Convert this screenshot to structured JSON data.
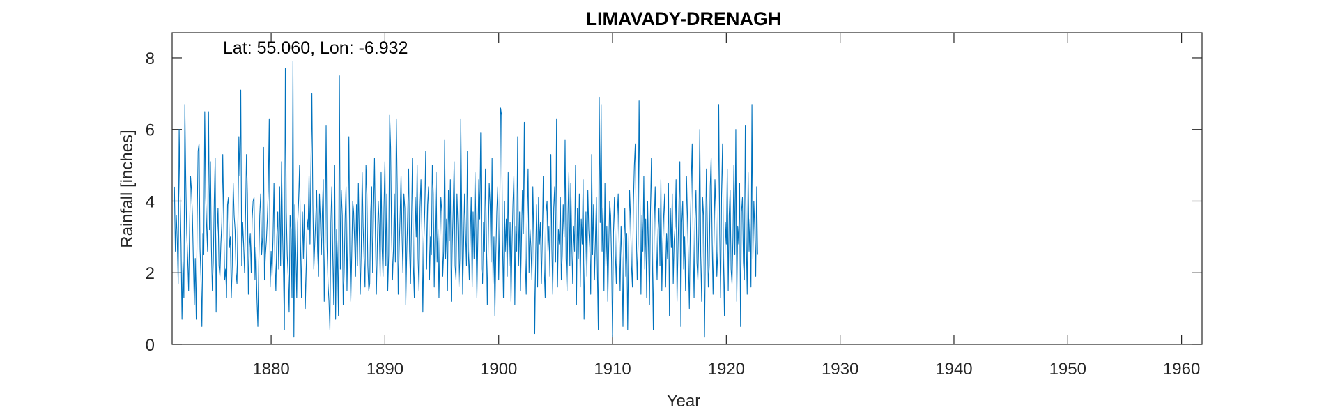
{
  "chart_data": {
    "type": "line",
    "title": "LIMAVADY-DRENAGH",
    "xlabel": "Year",
    "ylabel": "Rainfall [inches]",
    "annotation": "Lat: 55.060, Lon: -6.932",
    "xlim": [
      1871.3,
      1961.8
    ],
    "ylim": [
      0,
      8.7
    ],
    "x_ticks": [
      1880,
      1890,
      1900,
      1910,
      1920,
      1930,
      1940,
      1950,
      1960
    ],
    "y_ticks": [
      0,
      2,
      4,
      6,
      8
    ],
    "grid": false,
    "series": [
      {
        "color": "#0072BD",
        "x_start": 1871.5,
        "x_step": 0.0833333,
        "values": [
          4.4,
          2.6,
          3.6,
          2.9,
          1.7,
          6.0,
          4.2,
          2.8,
          0.7,
          2.3,
          1.3,
          6.7,
          4.6,
          3.1,
          2.4,
          1.5,
          3.2,
          4.7,
          4.3,
          3.6,
          2.3,
          1.1,
          2.4,
          0.7,
          3.5,
          5.4,
          5.6,
          2.7,
          1.9,
          0.5,
          3.1,
          2.5,
          6.5,
          4.1,
          3.3,
          2.6,
          6.5,
          3.2,
          5.1,
          2.7,
          1.5,
          2.3,
          4.0,
          5.2,
          0.9,
          3.1,
          3.8,
          2.2,
          1.9,
          2.8,
          3.4,
          5.3,
          3.5,
          1.8,
          2.1,
          1.3,
          3.9,
          4.1,
          2.7,
          3.0,
          1.3,
          2.2,
          4.5,
          3.6,
          3.2,
          2.0,
          1.7,
          3.4,
          5.8,
          4.7,
          7.1,
          2.2,
          3.4,
          2.8,
          2.0,
          3.6,
          5.3,
          4.2,
          1.4,
          2.7,
          3.1,
          2.0,
          3.5,
          4.0,
          4.1,
          1.8,
          2.7,
          1.3,
          0.5,
          2.3,
          3.6,
          4.2,
          2.5,
          3.0,
          5.5,
          1.8,
          2.5,
          2.9,
          3.5,
          4.3,
          6.3,
          1.6,
          2.6,
          1.9,
          3.0,
          4.5,
          2.3,
          1.5,
          3.0,
          3.7,
          2.1,
          4.4,
          2.2,
          5.1,
          3.2,
          2.0,
          0.4,
          7.7,
          3.7,
          2.5,
          1.9,
          0.9,
          3.6,
          3.2,
          1.3,
          7.9,
          0.2,
          3.9,
          2.6,
          1.3,
          3.4,
          4.0,
          5.0,
          2.8,
          1.3,
          3.7,
          2.4,
          3.9,
          1.0,
          2.1,
          3.5,
          3.2,
          4.7,
          2.8,
          5.0,
          7.0,
          3.9,
          2.1,
          2.8,
          3.5,
          4.3,
          2.6,
          1.9,
          4.2,
          3.4,
          2.5,
          3.7,
          4.6,
          1.2,
          2.9,
          6.1,
          2.7,
          1.7,
          1.2,
          0.4,
          3.4,
          4.4,
          2.5,
          1.1,
          5.0,
          0.7,
          3.2,
          2.4,
          0.8,
          7.5,
          2.1,
          4.3,
          3.6,
          1.1,
          2.0,
          3.5,
          4.4,
          1.5,
          3.2,
          5.8,
          2.6,
          1.2,
          2.5,
          4.0,
          3.7,
          2.9,
          1.9,
          3.9,
          2.2,
          4.5,
          3.0,
          1.4,
          2.6,
          4.8,
          3.3,
          2.4,
          1.6,
          5.0,
          4.2,
          2.2,
          1.5,
          1.7,
          3.7,
          4.4,
          2.0,
          3.7,
          5.2,
          3.0,
          1.4,
          2.8,
          4.0,
          3.3,
          1.9,
          4.8,
          2.7,
          1.9,
          3.8,
          5.1,
          2.2,
          4.2,
          1.5,
          2.5,
          6.4,
          5.5,
          3.1,
          1.8,
          2.7,
          4.2,
          2.3,
          6.3,
          4.4,
          1.4,
          2.6,
          3.6,
          4.7,
          3.1,
          2.0,
          4.2,
          3.8,
          1.1,
          2.5,
          3.6,
          4.9,
          2.6,
          1.7,
          3.3,
          5.2,
          2.2,
          1.3,
          4.1,
          3.0,
          5.0,
          2.4,
          1.5,
          3.8,
          4.6,
          3.2,
          0.9,
          2.8,
          3.7,
          5.4,
          2.1,
          3.9,
          4.4,
          1.8,
          3.0,
          2.5,
          5.0,
          4.2,
          1.6,
          3.4,
          4.8,
          2.3,
          3.2,
          1.3,
          2.9,
          4.1,
          3.7,
          1.9,
          2.6,
          5.7,
          2.4,
          3.5,
          1.5,
          4.3,
          2.9,
          4.6,
          1.2,
          2.7,
          3.8,
          5.1,
          2.2,
          1.8,
          4.2,
          3.3,
          1.6,
          2.4,
          6.3,
          3.6,
          1.4,
          2.8,
          4.2,
          3.1,
          2.2,
          5.4,
          2.6,
          1.8,
          3.0,
          4.1,
          1.6,
          3.7,
          2.4,
          4.8,
          3.2,
          1.3,
          2.9,
          4.6,
          3.5,
          5.9,
          2.1,
          1.7,
          3.4,
          2.6,
          4.9,
          3.1,
          1.1,
          2.8,
          4.5,
          3.9,
          2.3,
          5.2,
          1.7,
          3.0,
          0.8,
          2.5,
          3.7,
          4.4,
          1.8,
          3.3,
          6.6,
          6.4,
          2.9,
          1.3,
          4.0,
          2.6,
          3.5,
          1.9,
          4.8,
          2.2,
          3.4,
          1.2,
          2.7,
          3.9,
          4.7,
          1.1,
          3.3,
          2.6,
          5.8,
          2.2,
          3.7,
          1.5,
          2.9,
          4.3,
          3.1,
          6.2,
          2.4,
          1.4,
          3.5,
          4.9,
          2.0,
          3.2,
          2.7,
          1.8,
          4.4,
          3.0,
          0.3,
          2.5,
          3.9,
          1.6,
          4.1,
          2.8,
          3.4,
          1.7,
          2.9,
          4.7,
          2.1,
          1.3,
          3.7,
          4.0,
          2.6,
          3.3,
          1.9,
          5.3,
          2.7,
          1.4,
          3.8,
          4.4,
          2.3,
          6.3,
          1.6,
          3.2,
          2.8,
          4.1,
          1.8,
          2.5,
          3.9,
          3.0,
          5.7,
          2.4,
          1.5,
          3.6,
          4.8,
          2.2,
          4.5,
          2.9,
          1.7,
          3.3,
          2.6,
          5.0,
          1.1,
          3.8,
          2.4,
          4.2,
          1.6,
          3.5,
          2.8,
          4.6,
          0.7,
          2.3,
          3.7,
          1.9,
          4.3,
          3.2,
          2.7,
          1.4,
          5.3,
          2.5,
          3.9,
          1.8,
          3.0,
          4.1,
          2.1,
          0.4,
          6.9,
          3.4,
          6.7,
          2.6,
          3.8,
          1.5,
          4.5,
          2.2,
          3.3,
          1.2,
          2.7,
          4.0,
          3.6,
          2.3,
          0.2,
          3.1,
          4.1,
          2.5,
          1.7,
          3.6,
          4.2,
          2.8,
          1.5,
          3.3,
          2.4,
          0.5,
          2.9,
          3.8,
          1.9,
          3.1,
          0.4,
          2.7,
          4.3,
          3.5,
          2.2,
          1.6,
          3.9,
          5.0,
          5.6,
          3.2,
          1.8,
          2.8,
          6.8,
          4.0,
          1.4,
          3.6,
          2.6,
          4.7,
          2.1,
          3.5,
          1.3,
          4.0,
          2.6,
          1.1,
          3.7,
          5.2,
          2.5,
          0.4,
          3.4,
          4.4,
          2.9,
          1.8,
          3.2,
          3.8,
          2.2,
          4.6,
          1.5,
          2.8,
          3.6,
          4.2,
          1.6,
          3.1,
          2.4,
          4.5,
          0.8,
          3.8,
          2.7,
          4.2,
          1.7,
          2.9,
          3.3,
          4.6,
          1.2,
          2.6,
          3.9,
          5.1,
          0.5,
          3.4,
          4.0,
          2.1,
          3.0,
          1.5,
          4.7,
          3.6,
          2.4,
          1.0,
          3.2,
          4.5,
          5.6,
          2.8,
          1.3,
          3.5,
          4.3,
          2.3,
          1.8,
          3.1,
          6.0,
          2.5,
          1.2,
          4.1,
          3.6,
          0.2,
          2.7,
          4.9,
          3.3,
          1.6,
          2.2,
          4.4,
          5.2,
          3.0,
          1.4,
          2.9,
          4.6,
          3.7,
          1.9,
          2.6,
          6.7,
          3.1,
          1.3,
          4.2,
          5.6,
          2.4,
          0.8,
          3.4,
          2.8,
          4.9,
          1.5,
          3.6,
          4.3,
          2.1,
          1.7,
          3.0,
          5.0,
          2.5,
          6.0,
          1.2,
          3.3,
          2.8,
          4.5,
          0.5,
          3.7,
          4.1,
          2.3,
          1.8,
          6.1,
          3.0,
          1.4,
          4.8,
          2.6,
          3.5,
          1.6,
          6.7,
          2.4,
          4.0,
          3.2,
          1.9,
          4.4,
          2.5
        ]
      }
    ]
  }
}
